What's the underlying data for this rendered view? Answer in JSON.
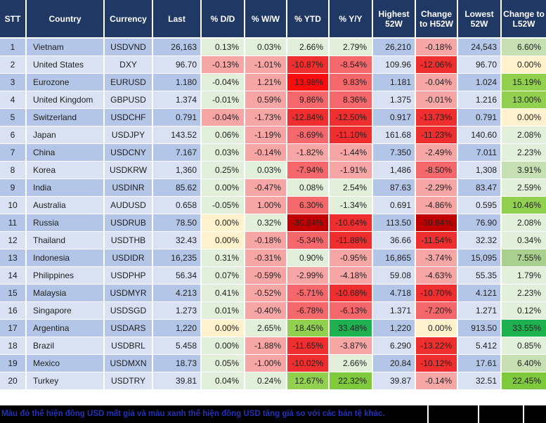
{
  "chart_data": {
    "type": "table",
    "columns": [
      "STT",
      "Country",
      "Currency",
      "Last",
      "% D/D",
      "% W/W",
      "% YTD",
      "% Y/Y",
      "Highest 52W",
      "Change to H52W",
      "Lowest 52W",
      "Change to L52W"
    ],
    "rows": [
      {
        "stt": "1",
        "country": "Vietnam",
        "currency": "USDVND",
        "last": "26,163",
        "high_52w": "26,210",
        "low_52w": "24,543",
        "pct": {
          "dd": [
            "0.13%",
            "lg"
          ],
          "ww": [
            "0.03%",
            "lg"
          ],
          "ytd": [
            "2.66%",
            "lg"
          ],
          "yy": [
            "2.79%",
            "lg"
          ],
          "chg_h": [
            "-0.18%",
            "pk"
          ],
          "chg_l": [
            "6.60%",
            "g1"
          ]
        }
      },
      {
        "stt": "2",
        "country": "United States",
        "currency": "DXY",
        "last": "96.70",
        "high_52w": "109.96",
        "low_52w": "96.70",
        "pct": {
          "dd": [
            "-0.13%",
            "pk"
          ],
          "ww": [
            "-1.01%",
            "pk"
          ],
          "ytd": [
            "-10.87%",
            "r3"
          ],
          "yy": [
            "-8.54%",
            "r2"
          ],
          "chg_h": [
            "-12.06%",
            "r3"
          ],
          "chg_l": [
            "0.00%",
            "yl"
          ]
        }
      },
      {
        "stt": "3",
        "country": "Eurozone",
        "currency": "EURUSD",
        "last": "1.180",
        "high_52w": "1.181",
        "low_52w": "1.024",
        "pct": {
          "dd": [
            "-0.04%",
            "lg"
          ],
          "ww": [
            "1.21%",
            "pk"
          ],
          "ytd": [
            "13.98%",
            "r4"
          ],
          "yy": [
            "9.83%",
            "r2"
          ],
          "chg_h": [
            "-0.04%",
            "pk"
          ],
          "chg_l": [
            "15.19%",
            "g3"
          ]
        }
      },
      {
        "stt": "4",
        "country": "United Kingdom",
        "currency": "GBPUSD",
        "last": "1.374",
        "high_52w": "1.375",
        "low_52w": "1.216",
        "pct": {
          "dd": [
            "-0.01%",
            "lg"
          ],
          "ww": [
            "0.59%",
            "pk"
          ],
          "ytd": [
            "9.86%",
            "r2"
          ],
          "yy": [
            "8.36%",
            "r2"
          ],
          "chg_h": [
            "-0.01%",
            "pk"
          ],
          "chg_l": [
            "13.00%",
            "g3"
          ]
        }
      },
      {
        "stt": "5",
        "country": "Switzerland",
        "currency": "USDCHF",
        "last": "0.791",
        "high_52w": "0.917",
        "low_52w": "0.791",
        "pct": {
          "dd": [
            "-0.04%",
            "pk"
          ],
          "ww": [
            "-1.73%",
            "pk"
          ],
          "ytd": [
            "-12.84%",
            "r3"
          ],
          "yy": [
            "-12.50%",
            "r3"
          ],
          "chg_h": [
            "-13.73%",
            "r3"
          ],
          "chg_l": [
            "0.00%",
            "yl"
          ]
        }
      },
      {
        "stt": "6",
        "country": "Japan",
        "currency": "USDJPY",
        "last": "143.52",
        "high_52w": "161.68",
        "low_52w": "140.60",
        "pct": {
          "dd": [
            "0.06%",
            "lg"
          ],
          "ww": [
            "-1.19%",
            "pk"
          ],
          "ytd": [
            "-8.69%",
            "r2"
          ],
          "yy": [
            "-11.10%",
            "r3"
          ],
          "chg_h": [
            "-11.23%",
            "r3"
          ],
          "chg_l": [
            "2.08%",
            "lg"
          ]
        }
      },
      {
        "stt": "7",
        "country": "China",
        "currency": "USDCNY",
        "last": "7.167",
        "high_52w": "7.350",
        "low_52w": "7.011",
        "pct": {
          "dd": [
            "0.03%",
            "lg"
          ],
          "ww": [
            "-0.14%",
            "pk"
          ],
          "ytd": [
            "-1.82%",
            "pk"
          ],
          "yy": [
            "-1.44%",
            "pk"
          ],
          "chg_h": [
            "-2.49%",
            "pk"
          ],
          "chg_l": [
            "2.23%",
            "lg"
          ]
        }
      },
      {
        "stt": "8",
        "country": "Korea",
        "currency": "USDKRW",
        "last": "1,360",
        "high_52w": "1,486",
        "low_52w": "1,308",
        "pct": {
          "dd": [
            "0.25%",
            "lg"
          ],
          "ww": [
            "0.03%",
            "lg"
          ],
          "ytd": [
            "-7.94%",
            "r2"
          ],
          "yy": [
            "-1.91%",
            "pk"
          ],
          "chg_h": [
            "-8.50%",
            "r2"
          ],
          "chg_l": [
            "3.91%",
            "g1"
          ]
        }
      },
      {
        "stt": "9",
        "country": "India",
        "currency": "USDINR",
        "last": "85.62",
        "high_52w": "87.63",
        "low_52w": "83.47",
        "pct": {
          "dd": [
            "0.00%",
            "lg"
          ],
          "ww": [
            "-0.47%",
            "pk"
          ],
          "ytd": [
            "0.08%",
            "lg"
          ],
          "yy": [
            "2.54%",
            "lg"
          ],
          "chg_h": [
            "-2.29%",
            "pk"
          ],
          "chg_l": [
            "2.59%",
            "lg"
          ]
        }
      },
      {
        "stt": "10",
        "country": "Australia",
        "currency": "AUDUSD",
        "last": "0.658",
        "high_52w": "0.691",
        "low_52w": "0.595",
        "pct": {
          "dd": [
            "-0.05%",
            "lg"
          ],
          "ww": [
            "1.00%",
            "pk"
          ],
          "ytd": [
            "6.30%",
            "r2"
          ],
          "yy": [
            "-1.34%",
            "lg"
          ],
          "chg_h": [
            "-4.86%",
            "pk"
          ],
          "chg_l": [
            "10.46%",
            "g3"
          ]
        }
      },
      {
        "stt": "11",
        "country": "Russia",
        "currency": "USDRUB",
        "last": "78.50",
        "high_52w": "113.50",
        "low_52w": "76.90",
        "pct": {
          "dd": [
            "0.00%",
            "yl"
          ],
          "ww": [
            "0.32%",
            "lg"
          ],
          "ytd": [
            "-30.84%",
            "r5"
          ],
          "yy": [
            "-10.64%",
            "r3"
          ],
          "chg_h": [
            "-30.84%",
            "r5"
          ],
          "chg_l": [
            "2.08%",
            "lg"
          ]
        }
      },
      {
        "stt": "12",
        "country": "Thailand",
        "currency": "USDTHB",
        "last": "32.43",
        "high_52w": "36.66",
        "low_52w": "32.32",
        "pct": {
          "dd": [
            "0.00%",
            "yl"
          ],
          "ww": [
            "-0.18%",
            "pk"
          ],
          "ytd": [
            "-5.34%",
            "r2"
          ],
          "yy": [
            "-11.88%",
            "r3"
          ],
          "chg_h": [
            "-11.54%",
            "r3"
          ],
          "chg_l": [
            "0.34%",
            "lg"
          ]
        }
      },
      {
        "stt": "13",
        "country": "Indonesia",
        "currency": "USDIDR",
        "last": "16,235",
        "high_52w": "16,865",
        "low_52w": "15,095",
        "pct": {
          "dd": [
            "0.31%",
            "lg"
          ],
          "ww": [
            "-0.31%",
            "pk"
          ],
          "ytd": [
            "0.90%",
            "lg"
          ],
          "yy": [
            "-0.95%",
            "pk"
          ],
          "chg_h": [
            "-3.74%",
            "pk"
          ],
          "chg_l": [
            "7.55%",
            "g2"
          ]
        }
      },
      {
        "stt": "14",
        "country": "Philippines",
        "currency": "USDPHP",
        "last": "56.34",
        "high_52w": "59.08",
        "low_52w": "55.35",
        "pct": {
          "dd": [
            "0.07%",
            "lg"
          ],
          "ww": [
            "-0.59%",
            "pk"
          ],
          "ytd": [
            "-2.99%",
            "pk"
          ],
          "yy": [
            "-4.18%",
            "pk"
          ],
          "chg_h": [
            "-4.63%",
            "pk"
          ],
          "chg_l": [
            "1.79%",
            "lg"
          ]
        }
      },
      {
        "stt": "15",
        "country": "Malaysia",
        "currency": "USDMYR",
        "last": "4.213",
        "high_52w": "4.718",
        "low_52w": "4.121",
        "pct": {
          "dd": [
            "0.41%",
            "lg"
          ],
          "ww": [
            "-0.52%",
            "pk"
          ],
          "ytd": [
            "-5.71%",
            "r2"
          ],
          "yy": [
            "-10.68%",
            "r3"
          ],
          "chg_h": [
            "-10.70%",
            "r3"
          ],
          "chg_l": [
            "2.23%",
            "lg"
          ]
        }
      },
      {
        "stt": "16",
        "country": "Singapore",
        "currency": "USDSGD",
        "last": "1.273",
        "high_52w": "1.371",
        "low_52w": "1.271",
        "pct": {
          "dd": [
            "0.01%",
            "lg"
          ],
          "ww": [
            "-0.40%",
            "pk"
          ],
          "ytd": [
            "-6.78%",
            "r2"
          ],
          "yy": [
            "-6.13%",
            "r2"
          ],
          "chg_h": [
            "-7.20%",
            "r2"
          ],
          "chg_l": [
            "0.12%",
            "lg"
          ]
        }
      },
      {
        "stt": "17",
        "country": "Argentina",
        "currency": "USDARS",
        "last": "1,220",
        "high_52w": "1,220",
        "low_52w": "913.50",
        "pct": {
          "dd": [
            "0.00%",
            "yl"
          ],
          "ww": [
            "2.65%",
            "lg"
          ],
          "ytd": [
            "18.45%",
            "g3"
          ],
          "yy": [
            "33.48%",
            "g5"
          ],
          "chg_h": [
            "0.00%",
            "yl"
          ],
          "chg_l": [
            "33.55%",
            "g5"
          ]
        }
      },
      {
        "stt": "18",
        "country": "Brazil",
        "currency": "USDBRL",
        "last": "5.458",
        "high_52w": "6.290",
        "low_52w": "5.412",
        "pct": {
          "dd": [
            "0.00%",
            "lg"
          ],
          "ww": [
            "-1.88%",
            "pk"
          ],
          "ytd": [
            "-11.65%",
            "r3"
          ],
          "yy": [
            "-3.87%",
            "pk"
          ],
          "chg_h": [
            "-13.22%",
            "r3"
          ],
          "chg_l": [
            "0.85%",
            "lg"
          ]
        }
      },
      {
        "stt": "19",
        "country": "Mexico",
        "currency": "USDMXN",
        "last": "18.73",
        "high_52w": "20.84",
        "low_52w": "17.61",
        "pct": {
          "dd": [
            "0.05%",
            "lg"
          ],
          "ww": [
            "-1.00%",
            "pk"
          ],
          "ytd": [
            "-10.02%",
            "r3"
          ],
          "yy": [
            "2.66%",
            "lg"
          ],
          "chg_h": [
            "-10.12%",
            "r3"
          ],
          "chg_l": [
            "6.40%",
            "g1"
          ]
        }
      },
      {
        "stt": "20",
        "country": "Turkey",
        "currency": "USDTRY",
        "last": "39.81",
        "high_52w": "39.87",
        "low_52w": "32.51",
        "pct": {
          "dd": [
            "0.04%",
            "lg"
          ],
          "ww": [
            "0.24%",
            "lg"
          ],
          "ytd": [
            "12.67%",
            "g3"
          ],
          "yy": [
            "22.32%",
            "g4"
          ],
          "chg_h": [
            "-0.14%",
            "pk"
          ],
          "chg_l": [
            "22.45%",
            "g4"
          ]
        }
      }
    ]
  },
  "palette": {
    "lg": "#E2EFDA",
    "yl": "#FFF2CC",
    "pk": "#F7A6A6",
    "r2": "#F4686B",
    "r3": "#EE2E2F",
    "r4": "#FC0D0D",
    "r5": "#C00000",
    "g1": "#C6E0B4",
    "g2": "#A9D08E",
    "g3": "#92D050",
    "g4": "#7FC93C",
    "g5": "#1FB050"
  },
  "header_bg": "#203864",
  "row_stripes": {
    "odd": "#B4C6E7",
    "even": "#D9E1F2"
  },
  "footer_note": "Màu đỏ thể hiện đồng USD mất giá và màu xanh thể hiện đồng USD tăng giá so với các bản tệ khác."
}
